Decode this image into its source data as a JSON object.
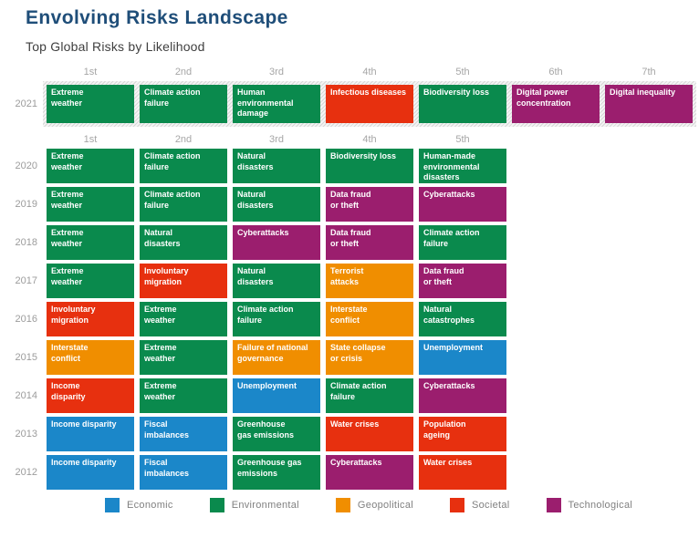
{
  "title": "Envolving Risks Landscape",
  "subtitle": "Top Global Risks by Likelihood",
  "chart_data": {
    "type": "table",
    "title": "Envolving Risks Landscape",
    "subtitle": "Top Global Risks by Likelihood",
    "columns_top": [
      "1st",
      "2nd",
      "3rd",
      "4th",
      "5th",
      "6th",
      "7th"
    ],
    "columns_bottom": [
      "1st",
      "2nd",
      "3rd",
      "4th",
      "5th"
    ],
    "category_colors": {
      "economic": "#1B87C9",
      "environmental": "#0A8A4D",
      "geopolitical": "#F08E00",
      "societal": "#E7300F",
      "technological": "#9B1E6E"
    },
    "highlight_row": {
      "year": "2021",
      "cells": [
        {
          "label": "Extreme\nweather",
          "category": "environmental"
        },
        {
          "label": "Climate action\nfailure",
          "category": "environmental"
        },
        {
          "label": "Human\nenvironmental\ndamage",
          "category": "environmental"
        },
        {
          "label": "Infectious diseases",
          "category": "societal"
        },
        {
          "label": "Biodiversity loss",
          "category": "environmental"
        },
        {
          "label": "Digital power\nconcentration",
          "category": "technological"
        },
        {
          "label": "Digital inequality",
          "category": "technological"
        }
      ]
    },
    "rows": [
      {
        "year": "2020",
        "cells": [
          {
            "label": "Extreme\nweather",
            "category": "environmental"
          },
          {
            "label": "Climate action\nfailure",
            "category": "environmental"
          },
          {
            "label": "Natural\ndisasters",
            "category": "environmental"
          },
          {
            "label": "Biodiversity loss",
            "category": "environmental"
          },
          {
            "label": "Human-made\nenvironmental\ndisasters",
            "category": "environmental"
          }
        ]
      },
      {
        "year": "2019",
        "cells": [
          {
            "label": "Extreme\nweather",
            "category": "environmental"
          },
          {
            "label": "Climate action\nfailure",
            "category": "environmental"
          },
          {
            "label": "Natural\ndisasters",
            "category": "environmental"
          },
          {
            "label": "Data fraud\nor theft",
            "category": "technological"
          },
          {
            "label": "Cyberattacks",
            "category": "technological"
          }
        ]
      },
      {
        "year": "2018",
        "cells": [
          {
            "label": "Extreme\nweather",
            "category": "environmental"
          },
          {
            "label": "Natural\ndisasters",
            "category": "environmental"
          },
          {
            "label": "Cyberattacks",
            "category": "technological"
          },
          {
            "label": "Data fraud\nor theft",
            "category": "technological"
          },
          {
            "label": "Climate action\nfailure",
            "category": "environmental"
          }
        ]
      },
      {
        "year": "2017",
        "cells": [
          {
            "label": "Extreme\nweather",
            "category": "environmental"
          },
          {
            "label": "Involuntary\nmigration",
            "category": "societal"
          },
          {
            "label": "Natural\ndisasters",
            "category": "environmental"
          },
          {
            "label": "Terrorist\nattacks",
            "category": "geopolitical"
          },
          {
            "label": "Data fraud\nor theft",
            "category": "technological"
          }
        ]
      },
      {
        "year": "2016",
        "cells": [
          {
            "label": "Involuntary\nmigration",
            "category": "societal"
          },
          {
            "label": "Extreme\nweather",
            "category": "environmental"
          },
          {
            "label": "Climate action\nfailure",
            "category": "environmental"
          },
          {
            "label": "Interstate\nconflict",
            "category": "geopolitical"
          },
          {
            "label": "Natural\ncatastrophes",
            "category": "environmental"
          }
        ]
      },
      {
        "year": "2015",
        "cells": [
          {
            "label": "Interstate\nconflict",
            "category": "geopolitical"
          },
          {
            "label": "Extreme\nweather",
            "category": "environmental"
          },
          {
            "label": "Failure of national\ngovernance",
            "category": "geopolitical"
          },
          {
            "label": "State collapse\nor crisis",
            "category": "geopolitical"
          },
          {
            "label": "Unemployment",
            "category": "economic"
          }
        ]
      },
      {
        "year": "2014",
        "cells": [
          {
            "label": "Income\ndisparity",
            "category": "societal"
          },
          {
            "label": "Extreme\nweather",
            "category": "environmental"
          },
          {
            "label": "Unemployment",
            "category": "economic"
          },
          {
            "label": "Climate action\nfailure",
            "category": "environmental"
          },
          {
            "label": "Cyberattacks",
            "category": "technological"
          }
        ]
      },
      {
        "year": "2013",
        "cells": [
          {
            "label": "Income disparity",
            "category": "economic"
          },
          {
            "label": "Fiscal\nimbalances",
            "category": "economic"
          },
          {
            "label": "Greenhouse\ngas emissions",
            "category": "environmental"
          },
          {
            "label": "Water crises",
            "category": "societal"
          },
          {
            "label": "Population\nageing",
            "category": "societal"
          }
        ]
      },
      {
        "year": "2012",
        "cells": [
          {
            "label": "Income disparity",
            "category": "economic"
          },
          {
            "label": "Fiscal\nimbalances",
            "category": "economic"
          },
          {
            "label": "Greenhouse gas\nemissions",
            "category": "environmental"
          },
          {
            "label": "Cyberattacks",
            "category": "technological"
          },
          {
            "label": "Water crises",
            "category": "societal"
          }
        ]
      }
    ],
    "legend": [
      {
        "label": "Economic",
        "category": "economic"
      },
      {
        "label": "Environmental",
        "category": "environmental"
      },
      {
        "label": "Geopolitical",
        "category": "geopolitical"
      },
      {
        "label": "Societal",
        "category": "societal"
      },
      {
        "label": "Technological",
        "category": "technological"
      }
    ]
  }
}
